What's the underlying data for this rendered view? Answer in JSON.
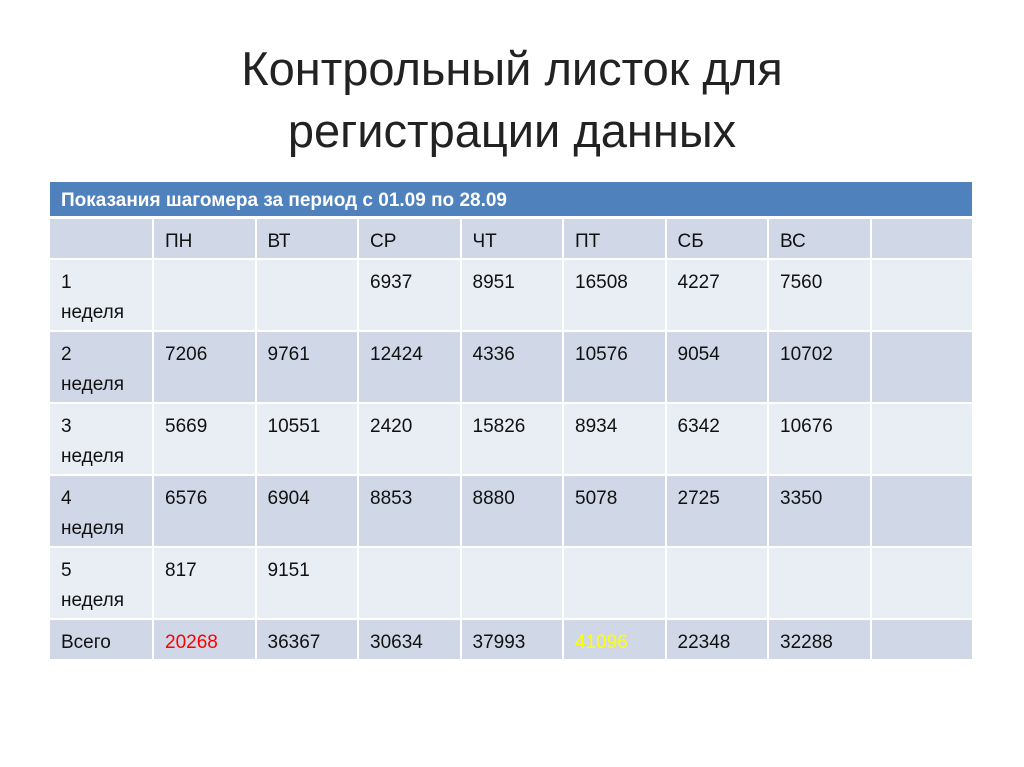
{
  "slide": {
    "title_line1": "Контрольный листок для",
    "title_line2": "регистрации данных"
  },
  "table": {
    "caption": "Показания шагомера за период с 01.09 по 28.09",
    "columns": [
      "",
      "ПН",
      "ВТ",
      "СР",
      "ЧТ",
      "ПТ",
      "СБ",
      "ВС",
      ""
    ],
    "rows": [
      {
        "label_num": "1",
        "label_word": "неделя",
        "values": [
          "",
          "",
          "6937",
          "8951",
          "16508",
          "4227",
          "7560",
          ""
        ]
      },
      {
        "label_num": "2",
        "label_word": "неделя",
        "values": [
          "7206",
          "9761",
          "12424",
          "4336",
          "10576",
          "9054",
          "10702",
          ""
        ]
      },
      {
        "label_num": "3",
        "label_word": "неделя",
        "values": [
          "5669",
          "10551",
          "2420",
          "15826",
          "8934",
          "6342",
          "10676",
          ""
        ]
      },
      {
        "label_num": "4",
        "label_word": "неделя",
        "values": [
          "6576",
          "6904",
          "8853",
          "8880",
          "5078",
          "2725",
          "3350",
          ""
        ]
      },
      {
        "label_num": "5",
        "label_word": "неделя",
        "values": [
          "817",
          "9151",
          "",
          "",
          "",
          "",
          "",
          ""
        ]
      }
    ],
    "total": {
      "label": "Всего",
      "values": [
        "20268",
        "36367",
        "30634",
        "37993",
        "41096",
        "22348",
        "32288",
        ""
      ],
      "highlight_colors": {
        "0": "#ff0000",
        "4": "#ffff00"
      }
    },
    "colors": {
      "caption_bg": "#4f81bd",
      "dark_row": "#d0d8e8",
      "light_row": "#e9edf4"
    }
  }
}
